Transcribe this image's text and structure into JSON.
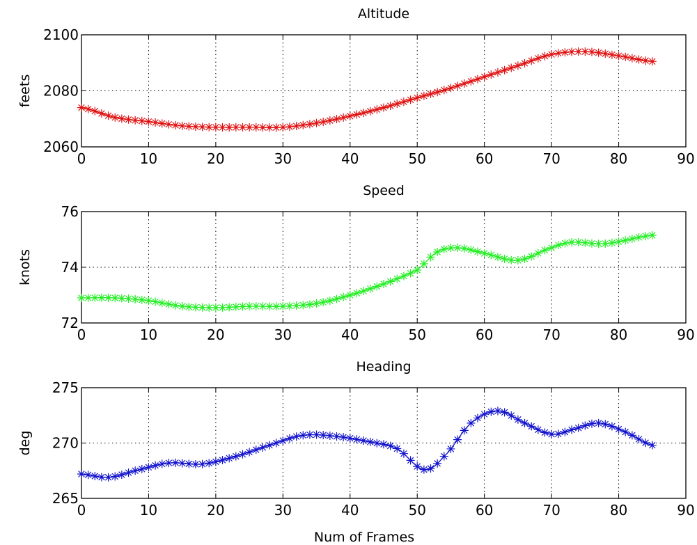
{
  "figure": {
    "xlabel": "Num of Frames"
  },
  "chart_data": [
    {
      "type": "line",
      "title": "Altitude",
      "xlabel": "",
      "ylabel": "feets",
      "xlim": [
        0,
        90
      ],
      "ylim": [
        2060,
        2100
      ],
      "xticks": [
        0,
        10,
        20,
        30,
        40,
        50,
        60,
        70,
        80,
        90
      ],
      "yticks": [
        2060,
        2080,
        2100
      ],
      "grid": true,
      "color": "#e01010",
      "marker": "*",
      "series": [
        {
          "x": [
            0,
            5,
            10,
            15,
            20,
            25,
            30,
            35,
            40,
            45,
            50,
            55,
            60,
            65,
            70,
            75,
            80,
            85
          ],
          "y": [
            2074,
            2070.5,
            2069,
            2067.5,
            2067,
            2067,
            2067,
            2068.5,
            2071,
            2074,
            2077.5,
            2081,
            2085,
            2089,
            2093,
            2094,
            2092.5,
            2090.5
          ]
        }
      ]
    },
    {
      "type": "line",
      "title": "Speed",
      "xlabel": "",
      "ylabel": "knots",
      "xlim": [
        0,
        90
      ],
      "ylim": [
        72,
        76
      ],
      "xticks": [
        0,
        10,
        20,
        30,
        40,
        50,
        60,
        70,
        80,
        90
      ],
      "yticks": [
        72,
        74,
        76
      ],
      "grid": true,
      "color": "#22ee22",
      "marker": "*",
      "series": [
        {
          "x": [
            0,
            5,
            10,
            15,
            20,
            25,
            30,
            35,
            40,
            45,
            50,
            53,
            56,
            60,
            65,
            70,
            73,
            78,
            85
          ],
          "y": [
            72.9,
            72.9,
            72.8,
            72.6,
            72.55,
            72.6,
            72.6,
            72.7,
            73.0,
            73.4,
            73.9,
            74.55,
            74.7,
            74.5,
            74.25,
            74.7,
            74.9,
            74.85,
            75.15
          ]
        }
      ]
    },
    {
      "type": "line",
      "title": "Heading",
      "xlabel": "Num of Frames",
      "ylabel": "deg",
      "xlim": [
        0,
        90
      ],
      "ylim": [
        265,
        275
      ],
      "xticks": [
        0,
        10,
        20,
        30,
        40,
        50,
        60,
        70,
        80,
        90
      ],
      "yticks": [
        265,
        270,
        275
      ],
      "grid": true,
      "color": "#1111cc",
      "marker": "*",
      "series": [
        {
          "x": [
            0,
            4,
            8,
            13,
            18,
            23,
            28,
            33,
            38,
            43,
            47,
            51,
            54,
            58,
            62,
            66,
            70,
            73,
            77,
            81,
            85
          ],
          "y": [
            267.2,
            266.9,
            267.5,
            268.2,
            268.1,
            268.8,
            269.8,
            270.7,
            270.6,
            270.1,
            269.5,
            267.6,
            268.8,
            271.8,
            272.9,
            271.8,
            270.8,
            271.2,
            271.8,
            271.0,
            269.8
          ]
        }
      ]
    }
  ]
}
